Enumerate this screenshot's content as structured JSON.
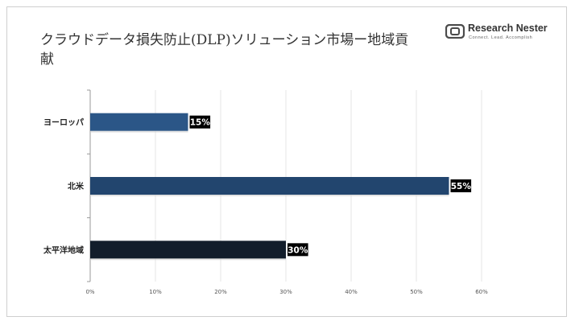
{
  "header": {
    "title": "クラウドデータ損失防止(DLP)ソリューション市場ー地域貢献",
    "logo_name": "Research Nester",
    "logo_tagline": "Connect. Lead. Accomplish"
  },
  "chart_data": {
    "type": "bar",
    "orientation": "horizontal",
    "categories": [
      "ヨーロッパ",
      "北米",
      "太平洋地域"
    ],
    "values": [
      15,
      55,
      30
    ],
    "data_labels": [
      "15%",
      "55%",
      "30%"
    ],
    "bar_colors": [
      "#2b5687",
      "#22456e",
      "#121d2b"
    ],
    "xlim": [
      0,
      60
    ],
    "xticks": [
      0,
      10,
      20,
      30,
      40,
      50,
      60
    ],
    "xtick_labels": [
      "0%",
      "10%",
      "20%",
      "30%",
      "40%",
      "50%",
      "60%"
    ],
    "grid": "vertical",
    "legend": "none",
    "xlabel": "",
    "ylabel": ""
  }
}
